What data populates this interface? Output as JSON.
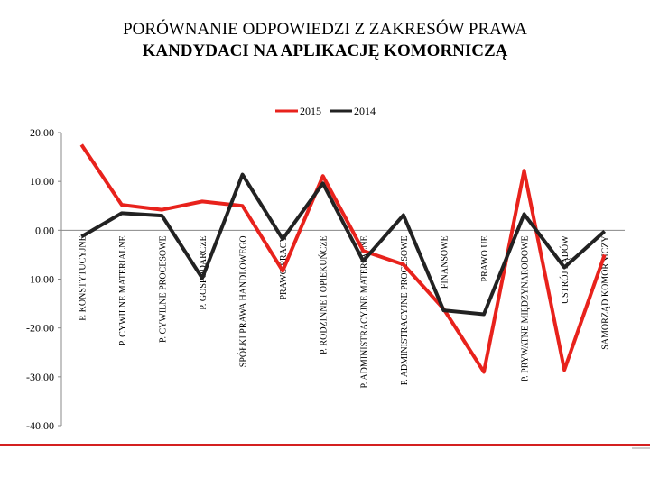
{
  "chart_data": {
    "type": "line",
    "title": [
      "PORÓWNANIE ODPOWIEDZI Z ZAKRESÓW PRAWA",
      "KANDYDACI NA APLIKACJĘ KOMORNICZĄ"
    ],
    "categories": [
      "P. KONSTYTUCYJNE",
      "P. CYWILNE MATERIALNE",
      "P. CYWILNE PROCESOWE",
      "P. GOSPODARCZE",
      "SPÓŁKI PRAWA HANDLOWEGO",
      "PRAWO PRACY",
      "P. RODZINNE I OPIEKUŃCZE",
      "P. ADMINISTRACYJNE MATERIALNE",
      "P. ADMINISTRACYJNE PROCESOWE",
      "FINANSOWE",
      "PRAWO UE",
      "P. PRYWATNE MIĘDZYNARODOWE",
      "USTRÓJ SĄDÓW",
      "SAMORZĄD KOMORNICZY"
    ],
    "series": [
      {
        "name": "2015",
        "color": "#e8221c",
        "values": [
          17.5,
          5.2,
          4.2,
          5.9,
          5.0,
          -8.3,
          11.1,
          -4.2,
          -7.0,
          -16.1,
          -29.0,
          12.2,
          -28.6,
          -5.0
        ]
      },
      {
        "name": "2014",
        "color": "#222222",
        "values": [
          -1.3,
          3.5,
          3.0,
          -9.8,
          11.4,
          -1.8,
          9.6,
          -6.3,
          3.1,
          -16.4,
          -17.2,
          3.3,
          -7.6,
          -0.2
        ]
      }
    ],
    "ylim": [
      -40,
      20
    ],
    "yticks": [
      {
        "value": 20,
        "label": "20.00"
      },
      {
        "value": 10,
        "label": "10.00"
      },
      {
        "value": 0,
        "label": "0.00"
      },
      {
        "value": -10,
        "label": "-10.00"
      },
      {
        "value": -20,
        "label": "-20.00"
      },
      {
        "value": -30,
        "label": "-30.00"
      },
      {
        "value": -40,
        "label": "-40.00"
      }
    ],
    "legend": "top"
  }
}
